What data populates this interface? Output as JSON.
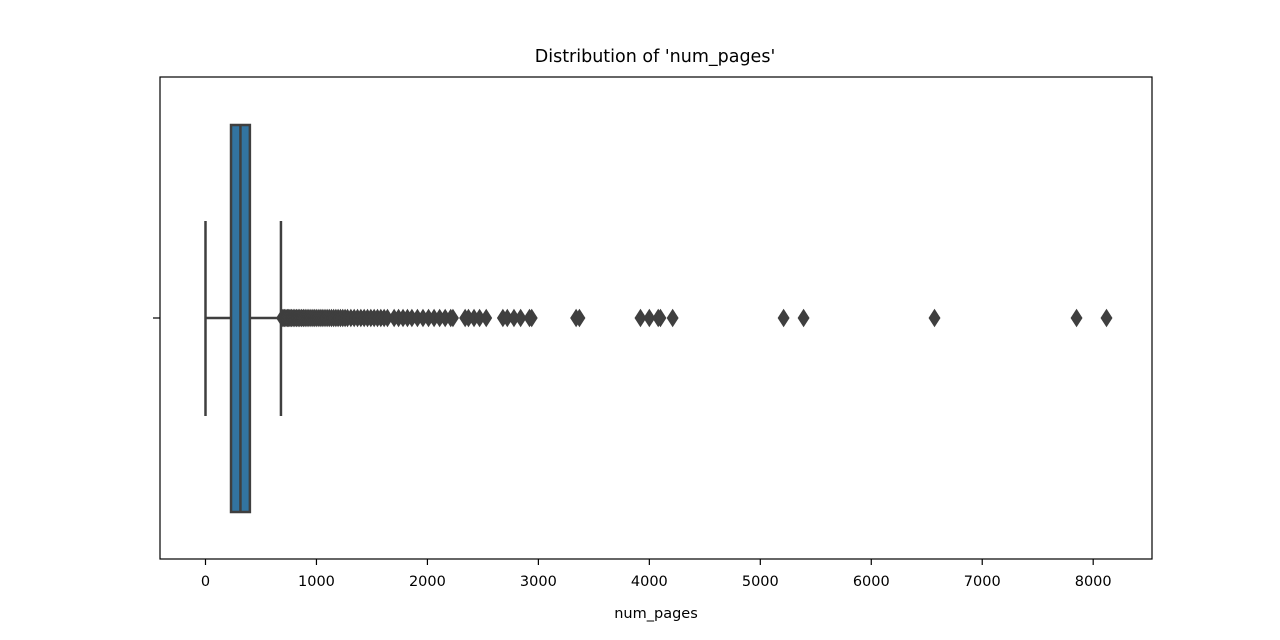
{
  "chart_data": {
    "type": "box",
    "orientation": "horizontal",
    "title": "Distribution of 'num_pages'",
    "xlabel": "num_pages",
    "ylabel": "",
    "xlim": [
      -410,
      8530
    ],
    "xticks": [
      0,
      1000,
      2000,
      3000,
      4000,
      5000,
      6000,
      7000,
      8000
    ],
    "xtick_labels": [
      "0",
      "1000",
      "2000",
      "3000",
      "4000",
      "5000",
      "6000",
      "7000",
      "8000"
    ],
    "grid": false,
    "box": {
      "whisker_low": 0,
      "q1": 230,
      "median": 315,
      "q3": 400,
      "whisker_high": 680,
      "color": "#3274a1",
      "line_color": "#3f3f3f"
    },
    "outliers": [
      690,
      700,
      712,
      725,
      738,
      750,
      762,
      775,
      790,
      805,
      820,
      835,
      850,
      866,
      882,
      898,
      915,
      932,
      950,
      968,
      985,
      1003,
      1022,
      1040,
      1058,
      1077,
      1096,
      1115,
      1135,
      1155,
      1175,
      1195,
      1216,
      1237,
      1258,
      1280,
      1310,
      1340,
      1370,
      1400,
      1430,
      1460,
      1490,
      1520,
      1550,
      1580,
      1610,
      1640,
      1700,
      1740,
      1780,
      1820,
      1860,
      1910,
      1960,
      2010,
      2060,
      2110,
      2160,
      2210,
      2230,
      2340,
      2370,
      2420,
      2470,
      2530,
      2680,
      2720,
      2780,
      2840,
      2920,
      2940,
      3340,
      3370,
      3920,
      4000,
      4080,
      4100,
      4210,
      5210,
      5390,
      6570,
      7850,
      8120
    ]
  }
}
